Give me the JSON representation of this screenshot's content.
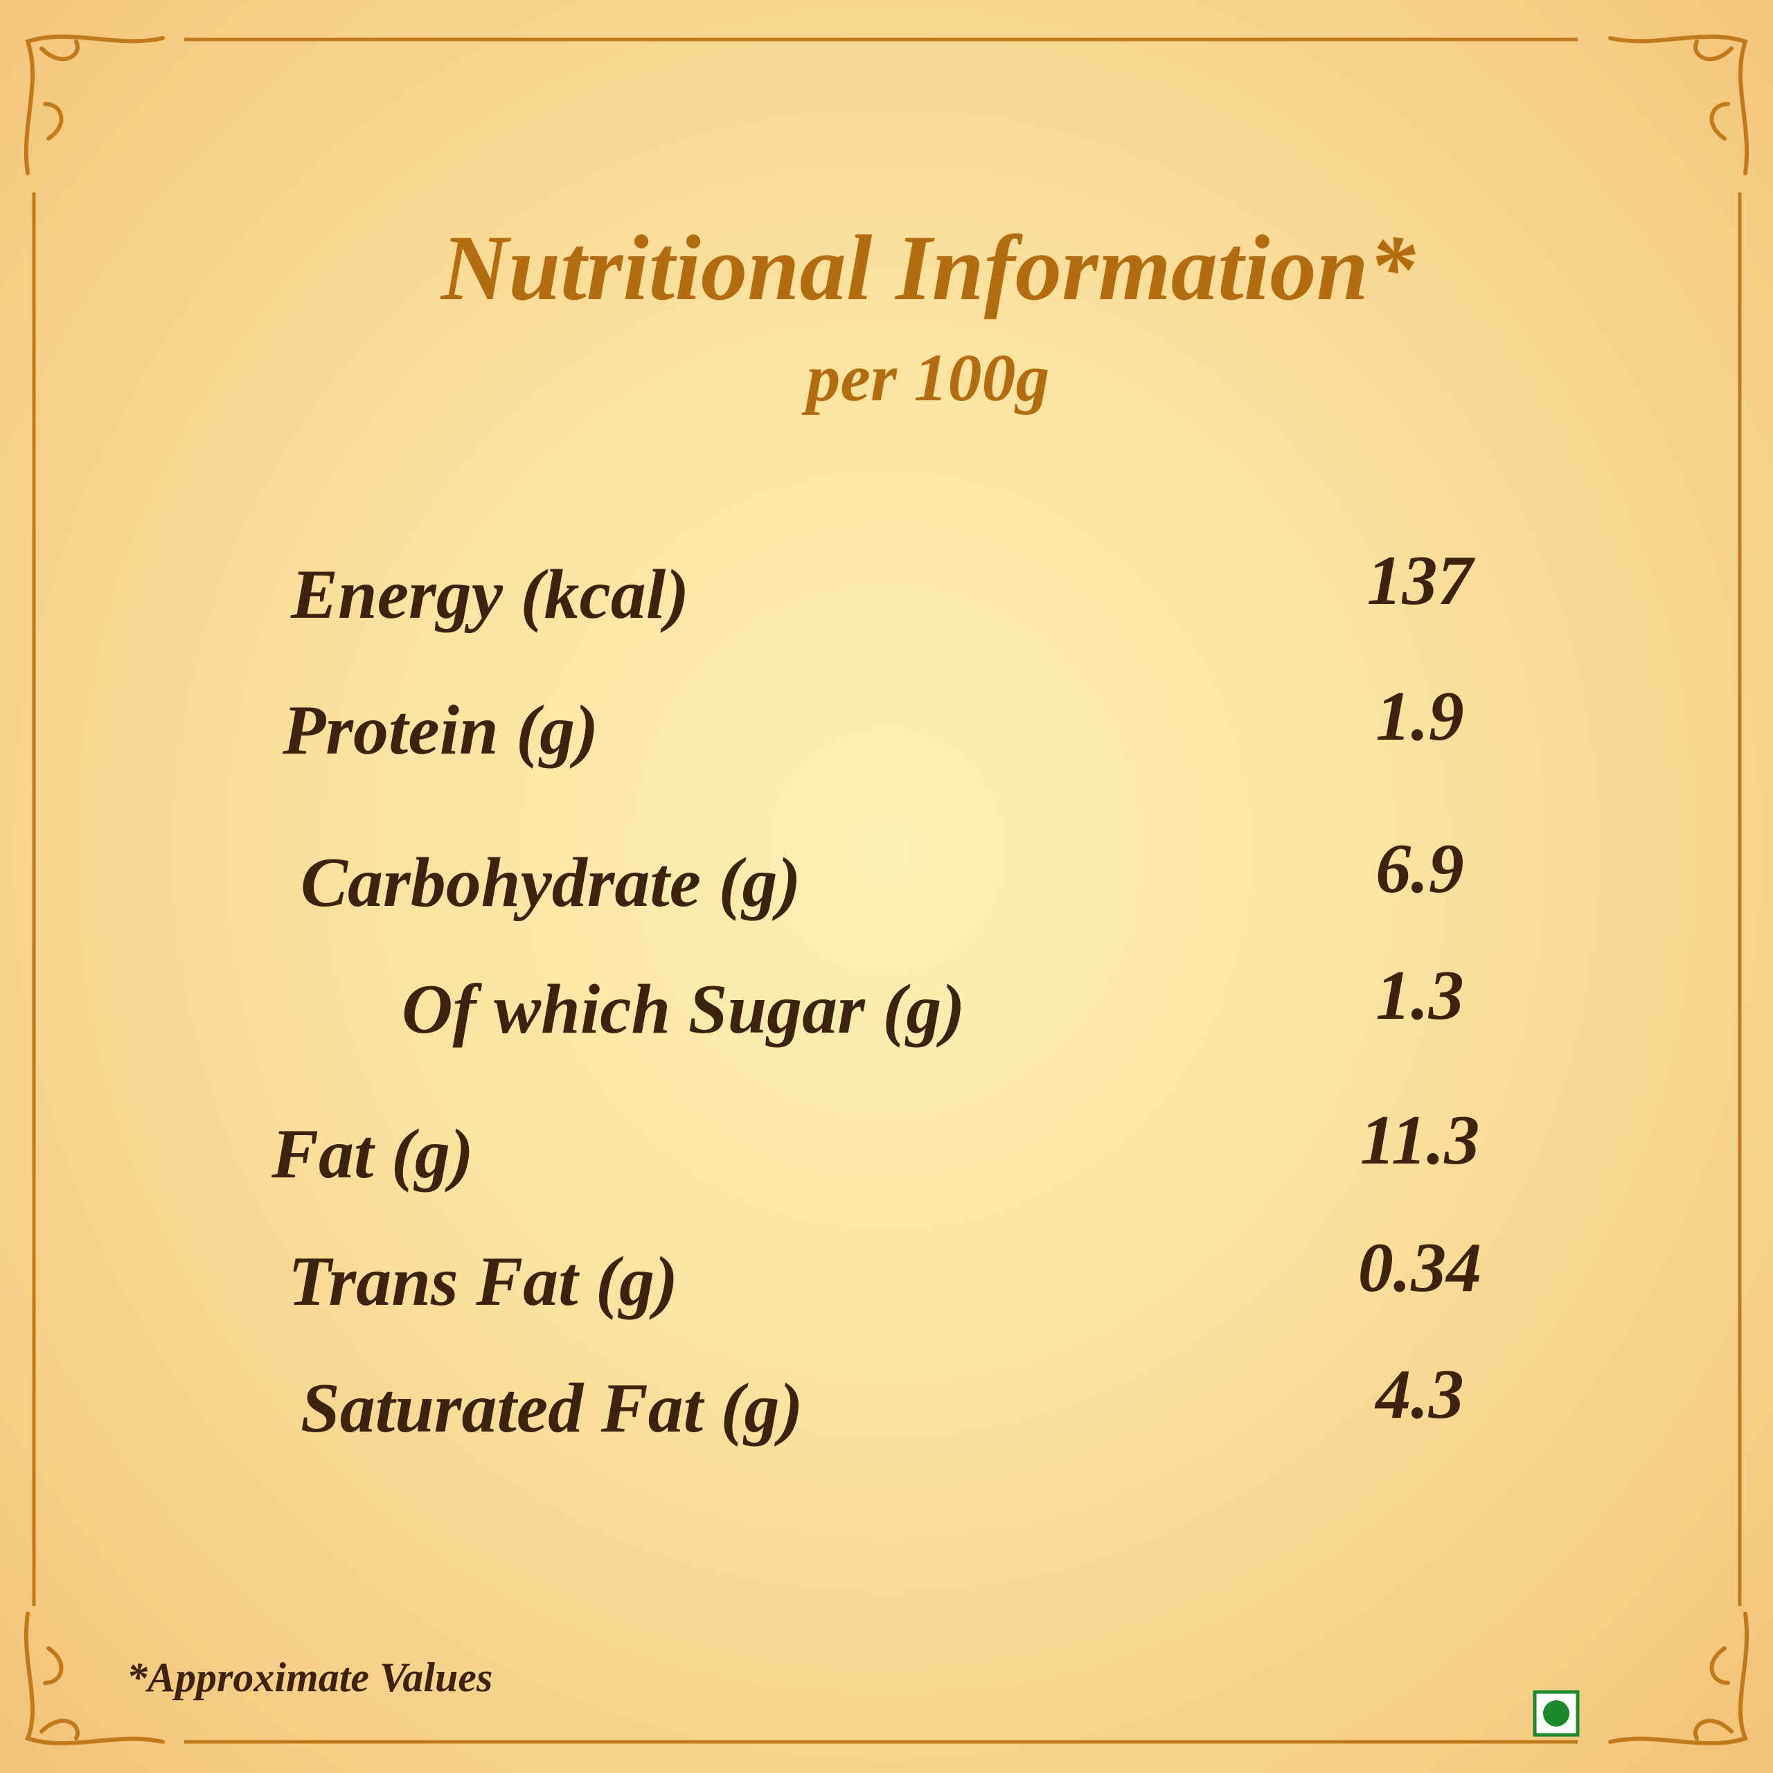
{
  "header": {
    "title": "Nutritional Information*",
    "subtitle": "per 100g"
  },
  "table": {
    "rows": [
      [
        "Energy (kcal)",
        "137"
      ],
      [
        "Protein (g)",
        "1.9"
      ],
      [
        "Carbohydrate (g)",
        "6.9"
      ],
      [
        "Of which Sugar (g)",
        "1.3"
      ],
      [
        "Fat (g)",
        "11.3"
      ],
      [
        "Trans Fat (g)",
        "0.34"
      ],
      [
        "Saturated Fat (g)",
        "4.3"
      ]
    ]
  },
  "footnote": "*Approximate Values"
}
